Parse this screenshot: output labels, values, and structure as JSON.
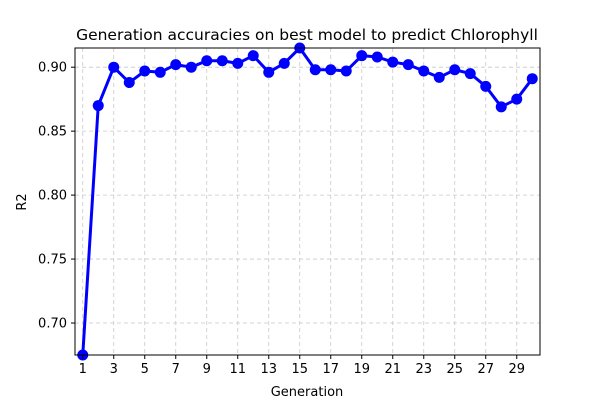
{
  "chart_data": {
    "type": "line",
    "title": "Generation accuracies on best model to predict Chlorophyll",
    "xlabel": "Generation",
    "ylabel": "R2",
    "xlim": [
      0.5,
      30.5
    ],
    "ylim": [
      0.675,
      0.915
    ],
    "xticks": [
      1,
      3,
      5,
      7,
      9,
      11,
      13,
      15,
      17,
      19,
      21,
      23,
      25,
      27,
      29
    ],
    "yticks": [
      0.7,
      0.75,
      0.8,
      0.85,
      0.9
    ],
    "ytick_labels": [
      "0.70",
      "0.75",
      "0.80",
      "0.85",
      "0.90"
    ],
    "grid": true,
    "legend": "none",
    "series": [
      {
        "color": "#0000ff",
        "marker": "circle",
        "x": [
          1,
          2,
          3,
          4,
          5,
          6,
          7,
          8,
          9,
          10,
          11,
          12,
          13,
          14,
          15,
          16,
          17,
          18,
          19,
          20,
          21,
          22,
          23,
          24,
          25,
          26,
          27,
          28,
          29,
          30
        ],
        "values": [
          0.675,
          0.87,
          0.9,
          0.888,
          0.897,
          0.896,
          0.902,
          0.9,
          0.905,
          0.905,
          0.903,
          0.909,
          0.896,
          0.903,
          0.915,
          0.898,
          0.898,
          0.897,
          0.909,
          0.908,
          0.904,
          0.902,
          0.897,
          0.892,
          0.898,
          0.895,
          0.885,
          0.869,
          0.875,
          0.891
        ]
      }
    ]
  }
}
